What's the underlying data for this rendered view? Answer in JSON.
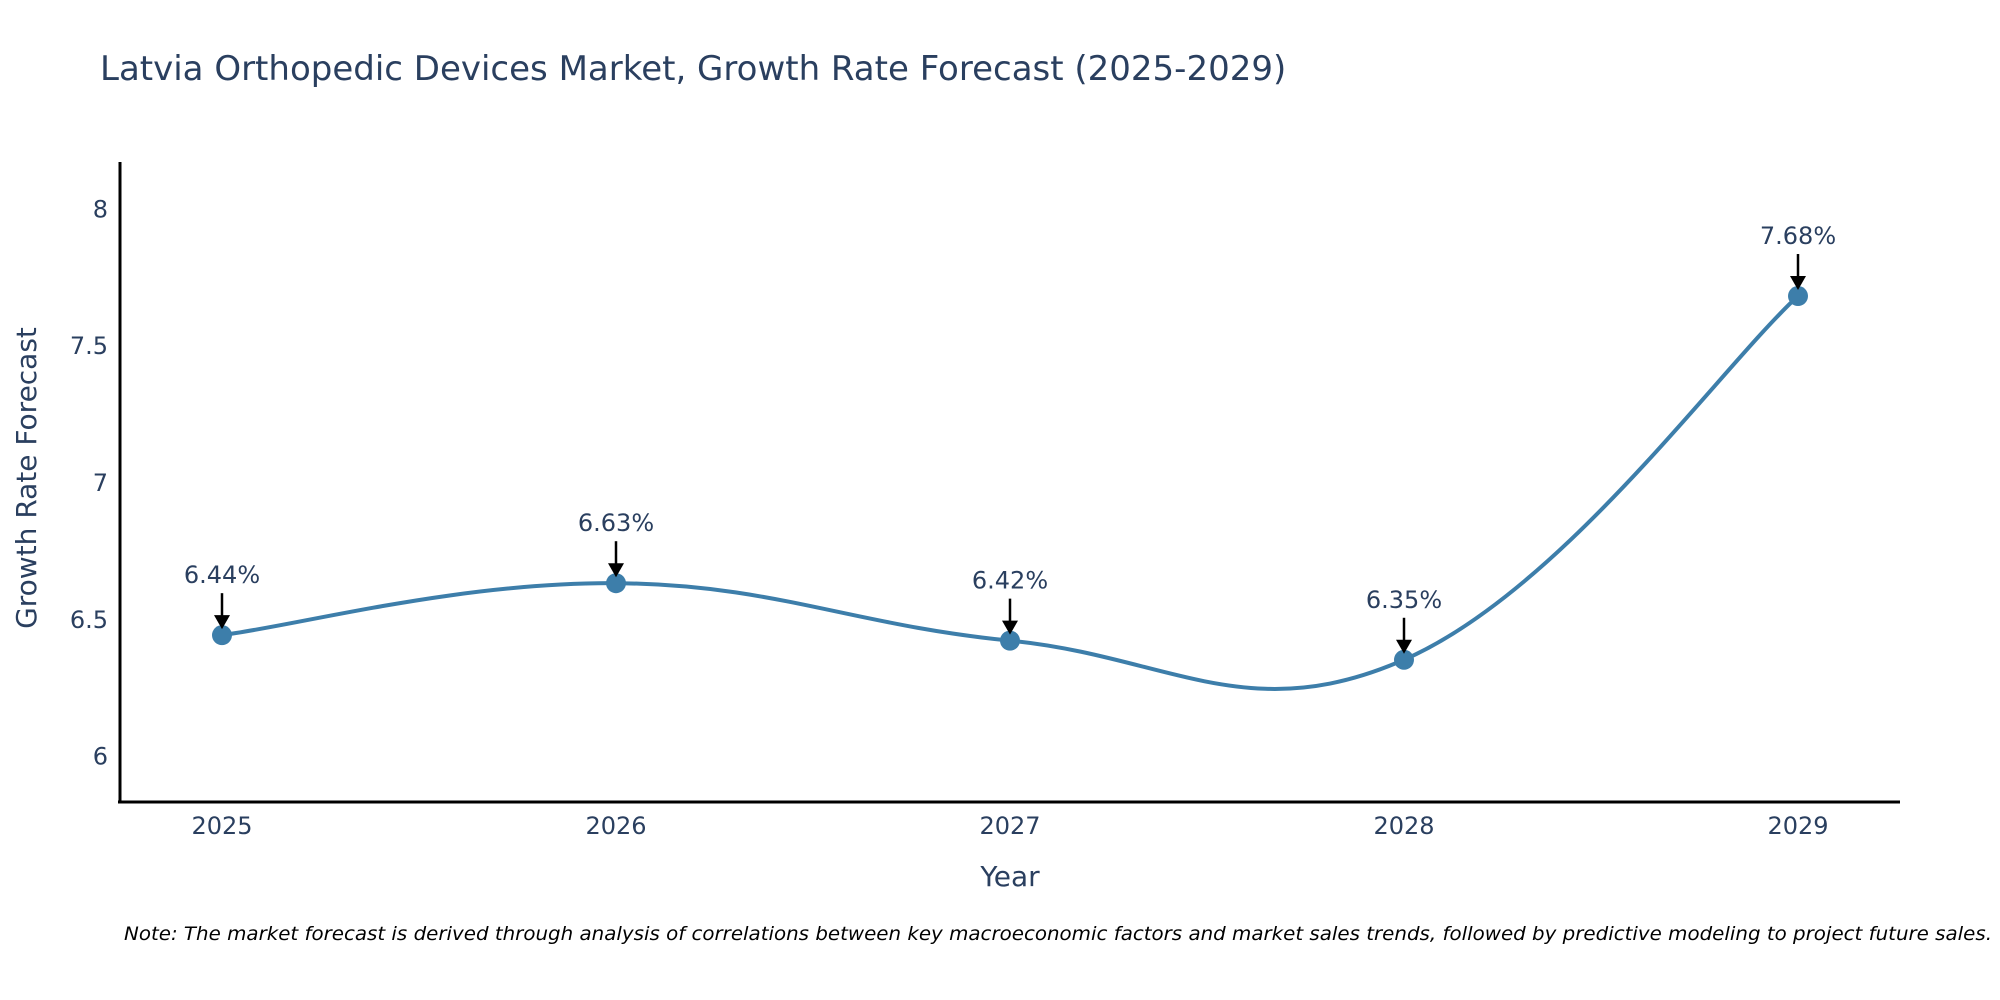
{
  "chart_data": {
    "type": "line",
    "title": "Latvia Orthopedic Devices Market, Growth Rate Forecast (2025-2029)",
    "xlabel": "Year",
    "ylabel": "Growth Rate Forecast",
    "categories": [
      "2025",
      "2026",
      "2027",
      "2028",
      "2029"
    ],
    "series": [
      {
        "name": "Growth Rate Forecast",
        "values": [
          6.44,
          6.63,
          6.42,
          6.35,
          7.68
        ]
      }
    ],
    "data_labels": [
      "6.44%",
      "6.63%",
      "6.42%",
      "6.35%",
      "7.68%"
    ],
    "ylim": [
      5.83,
      8.17
    ],
    "yticks": [
      6,
      6.5,
      7,
      7.5,
      8
    ],
    "ytick_labels": [
      "6",
      "6.5",
      "7",
      "7.5",
      "8"
    ],
    "grid": false,
    "line_shape": "spline",
    "line_color": "#3d7eaa",
    "marker_color": "#3d7eaa",
    "annotation_arrow_color": "#000000",
    "note": "Note: The market forecast is derived through analysis of correlations between key macroeconomic factors and market sales trends, followed by predictive modeling to project future sales."
  }
}
